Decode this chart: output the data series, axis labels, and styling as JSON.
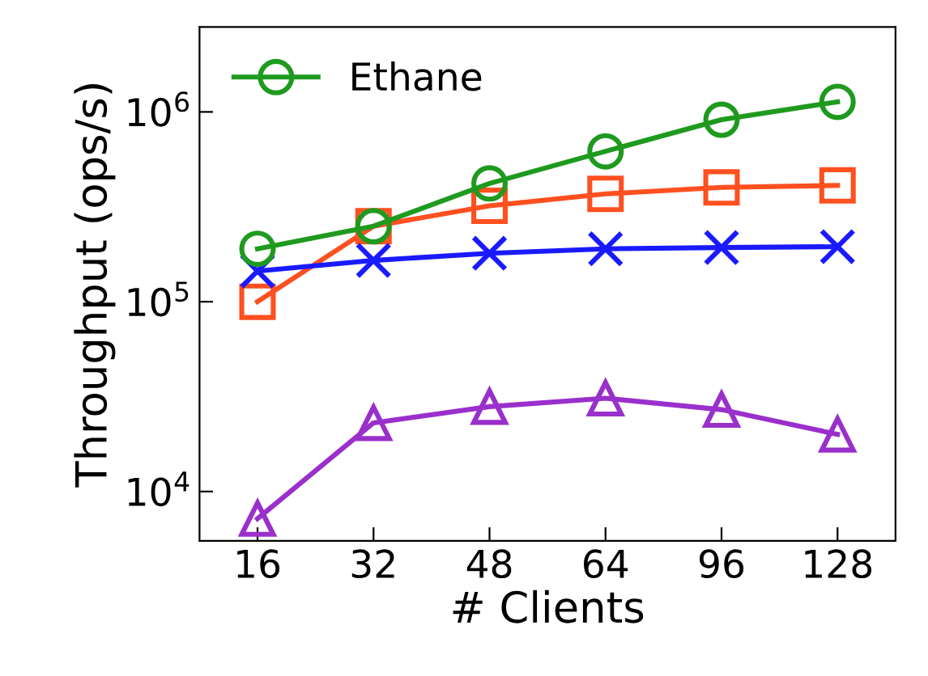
{
  "chart_data": {
    "type": "line",
    "xlabel": "# Clients",
    "ylabel": "Throughput (ops/s)",
    "categories": [
      "16",
      "32",
      "48",
      "64",
      "96",
      "128"
    ],
    "series": [
      {
        "name": "Ethane",
        "color": "#1f9a1f",
        "marker": "circle",
        "values": [
          190000,
          250000,
          420000,
          620000,
          910000,
          1130000
        ]
      },
      {
        "color": "#ff5020",
        "marker": "square",
        "values": [
          100000,
          250000,
          320000,
          370000,
          400000,
          410000
        ]
      },
      {
        "color": "#1a1aff",
        "marker": "cross",
        "values": [
          145000,
          165000,
          180000,
          190000,
          193000,
          195000
        ]
      },
      {
        "color": "#9a30cc",
        "marker": "triangle",
        "values": [
          7200,
          23000,
          28000,
          31000,
          27000,
          20000
        ]
      }
    ],
    "log": "y",
    "ylim": [
      5500,
      2800000
    ],
    "yticks": [
      {
        "value": 10000,
        "label": "10$^{4}$"
      },
      {
        "value": 100000,
        "label": "10$^{5}$"
      },
      {
        "value": 1000000,
        "label": "10$^{6}$"
      }
    ],
    "grid": false,
    "legend": "top left",
    "line_style": "solid"
  }
}
